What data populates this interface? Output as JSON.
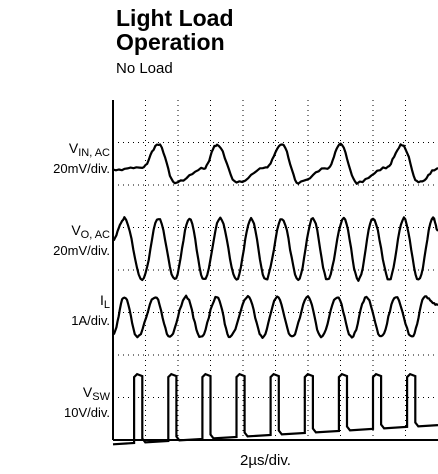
{
  "title_line1": "Light Load",
  "title_line2": "Operation",
  "subtitle": "No Load",
  "chart_data": {
    "type": "line",
    "title": "Light Load Operation",
    "subtitle": "No Load",
    "xlabel": "2µs/div.",
    "x_divisions": 10,
    "y_divisions": 8,
    "grid": true,
    "series": [
      {
        "name": "V",
        "sub": "IN, AC",
        "scale": "20mV/div.",
        "x": [
          0,
          0.9,
          1.4,
          1.9,
          2.8,
          3.2,
          3.8,
          4.7,
          5.2,
          5.7,
          6.6,
          7.0,
          7.5,
          8.4,
          8.9,
          9.4,
          10
        ],
        "y": [
          0,
          0.05,
          0.6,
          -0.3,
          0.05,
          0.6,
          -0.3,
          0.05,
          0.6,
          -0.3,
          0.05,
          0.6,
          -0.3,
          0.05,
          0.6,
          -0.3,
          0.05
        ]
      },
      {
        "name": "V",
        "sub": "O, AC",
        "scale": "20mV/div.",
        "x": [
          0,
          0.35,
          0.9,
          1.4,
          1.9,
          2.35,
          2.8,
          3.3,
          3.8,
          4.25,
          4.7,
          5.2,
          5.7,
          6.15,
          6.6,
          7.1,
          7.55,
          8.0,
          8.5,
          8.95,
          9.4,
          9.85,
          10
        ],
        "y": [
          0.2,
          0.7,
          -0.75,
          0.7,
          -0.75,
          0.7,
          -0.75,
          0.7,
          -0.75,
          0.7,
          -0.75,
          0.7,
          -0.75,
          0.7,
          -0.75,
          0.7,
          -0.75,
          0.7,
          -0.75,
          0.7,
          -0.75,
          0.7,
          0.4
        ]
      },
      {
        "name": "I",
        "sub": "L",
        "scale": "1A/div.",
        "x": [
          0,
          0.35,
          0.75,
          1.3,
          1.75,
          2.25,
          2.7,
          3.2,
          3.6,
          4.15,
          4.6,
          5.05,
          5.5,
          6.0,
          6.4,
          6.9,
          7.35,
          7.8,
          8.25,
          8.7,
          9.2,
          9.6,
          10
        ],
        "y": [
          -0.4,
          0.5,
          -0.45,
          0.5,
          -0.45,
          0.5,
          -0.45,
          0.5,
          -0.45,
          0.5,
          -0.45,
          0.5,
          -0.45,
          0.5,
          -0.45,
          0.5,
          -0.45,
          0.5,
          -0.45,
          0.5,
          -0.45,
          0.5,
          0.3
        ]
      },
      {
        "name": "V",
        "sub": "SW",
        "scale": "10V/div.",
        "pulse_starts": [
          0.65,
          1.7,
          2.75,
          3.8,
          4.85,
          5.9,
          6.95,
          8.0,
          9.05
        ],
        "pulse_width": 0.25,
        "high_level": 0.75,
        "low_level_start": -0.9,
        "low_level_end": -0.45
      }
    ]
  }
}
